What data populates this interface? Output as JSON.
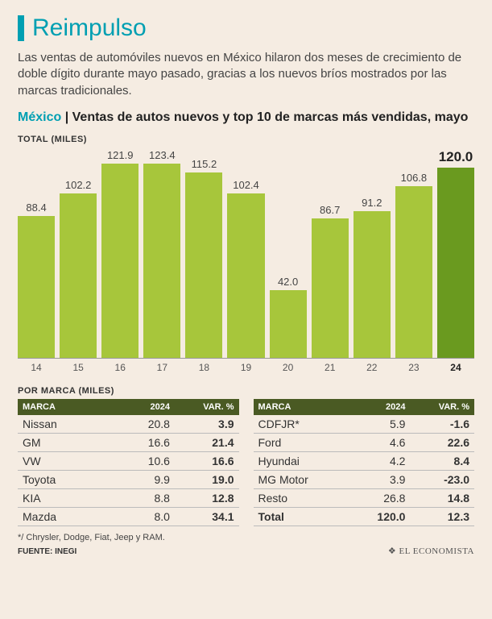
{
  "colors": {
    "accent": "#009fb2",
    "background": "#f5ece2",
    "bar": "#a7c63b",
    "bar_highlight": "#6a9a1f",
    "table_header": "#4a5a23",
    "text": "#333333"
  },
  "header": {
    "title": "Reimpulso",
    "intro": "Las ventas de automóviles nuevos en México hilaron dos meses de crecimiento de doble dígito durante mayo pasado, gracias a los nuevos bríos mostrados por las marcas tradicionales."
  },
  "subtitle": {
    "mx": "México",
    "sep": " | ",
    "rest": "Ventas de autos nuevos y top 10 de marcas más vendidas, mayo"
  },
  "chart": {
    "type": "bar",
    "y_label": "TOTAL (MILES)",
    "y_max": 130,
    "categories": [
      "14",
      "15",
      "16",
      "17",
      "18",
      "19",
      "20",
      "21",
      "22",
      "23",
      "24"
    ],
    "values": [
      88.4,
      102.2,
      121.9,
      123.4,
      115.2,
      102.4,
      42.0,
      86.7,
      91.2,
      106.8,
      120.0
    ],
    "highlight_index": 10,
    "bar_color": "#a7c63b",
    "highlight_color": "#6a9a1f",
    "label_fontsize": 13
  },
  "tables": {
    "label": "POR MARCA (MILES)",
    "headers": {
      "brand": "MARCA",
      "val": "2024",
      "var": "VAR. %"
    },
    "left": [
      {
        "brand": "Nissan",
        "val": "20.8",
        "var": "3.9"
      },
      {
        "brand": "GM",
        "val": "16.6",
        "var": "21.4"
      },
      {
        "brand": "VW",
        "val": "10.6",
        "var": "16.6"
      },
      {
        "brand": "Toyota",
        "val": "9.9",
        "var": "19.0"
      },
      {
        "brand": "KIA",
        "val": "8.8",
        "var": "12.8"
      },
      {
        "brand": "Mazda",
        "val": "8.0",
        "var": "34.1"
      }
    ],
    "right": [
      {
        "brand": "CDFJR*",
        "val": "5.9",
        "var": "-1.6"
      },
      {
        "brand": "Ford",
        "val": "4.6",
        "var": "22.6"
      },
      {
        "brand": "Hyundai",
        "val": "4.2",
        "var": "8.4"
      },
      {
        "brand": "MG Motor",
        "val": "3.9",
        "var": "-23.0"
      },
      {
        "brand": "Resto",
        "val": "26.8",
        "var": "14.8"
      },
      {
        "brand": "Total",
        "val": "120.0",
        "var": "12.3",
        "total": true
      }
    ]
  },
  "footnote": "*/ Chrysler, Dodge, Fiat, Jeep y RAM.",
  "source": "FUENTE: INEGI",
  "publisher": "EL ECONOMISTA",
  "publisher_glyph": "❖"
}
